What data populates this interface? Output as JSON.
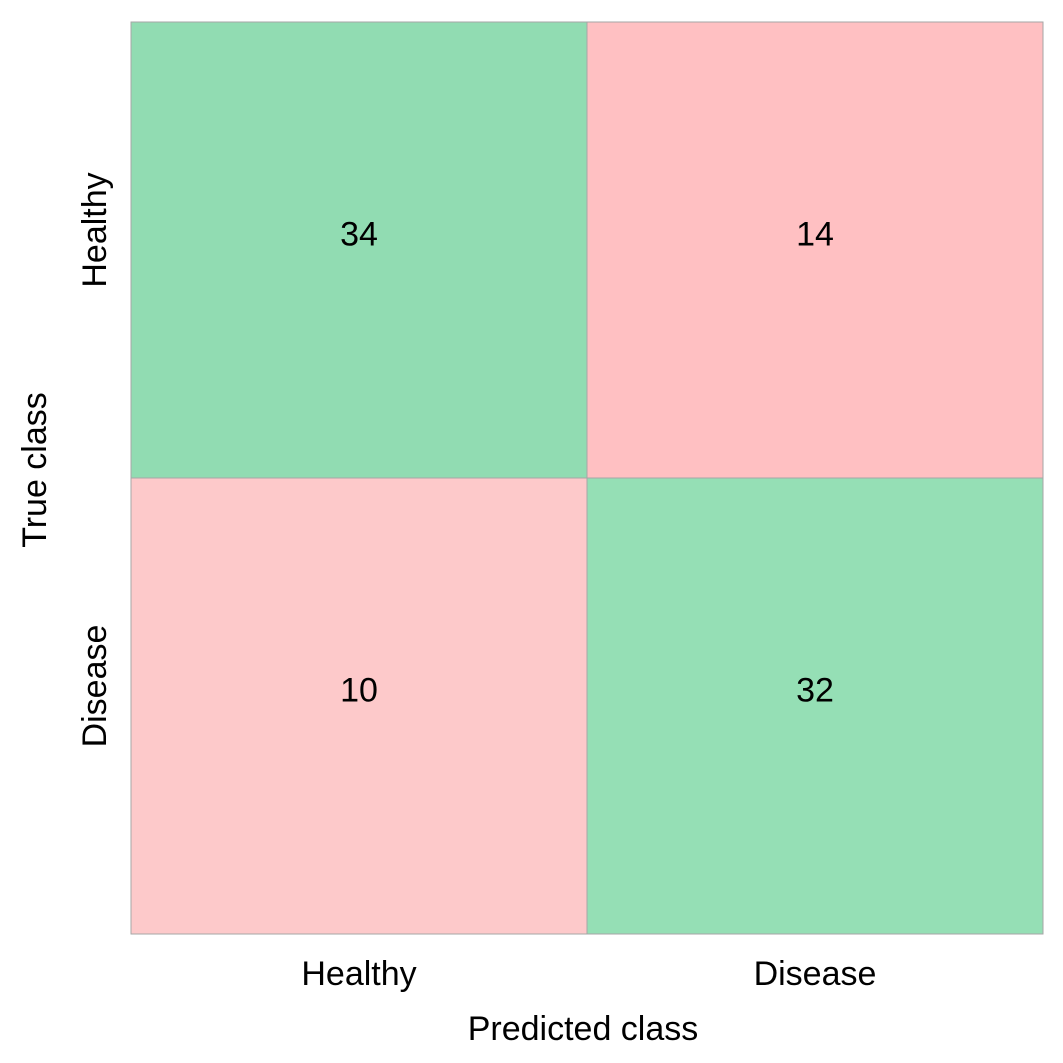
{
  "chart_data": {
    "type": "heatmap",
    "title": "",
    "xlabel": "Predicted class",
    "ylabel": "True class",
    "x_categories": [
      "Healthy",
      "Disease"
    ],
    "y_categories": [
      "Healthy",
      "Disease"
    ],
    "values": [
      [
        34,
        14
      ],
      [
        10,
        32
      ]
    ],
    "colors": {
      "correct": "#91dcb2",
      "incorrect": "#ffc0c2",
      "incorrect_alt": "#fdc9ca",
      "correct_alt": "#95dfb5",
      "border": "#a6a6a6"
    }
  }
}
